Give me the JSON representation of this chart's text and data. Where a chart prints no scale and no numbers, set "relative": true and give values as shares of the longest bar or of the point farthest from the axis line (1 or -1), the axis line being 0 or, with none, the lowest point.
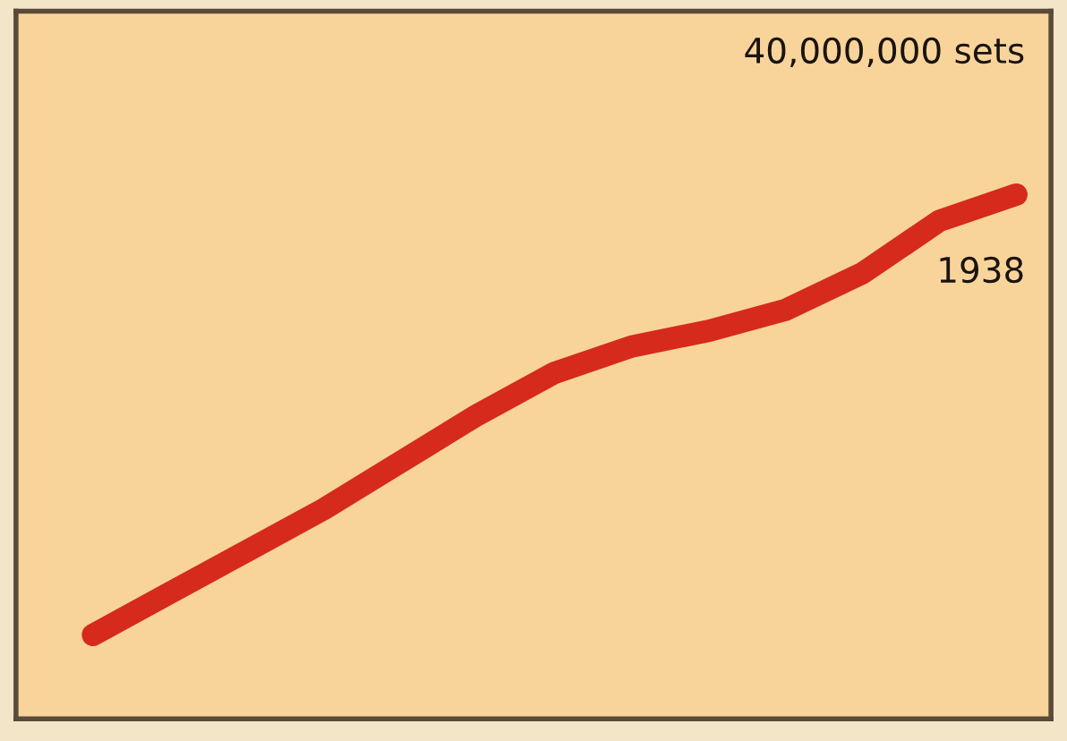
{
  "chart_data": {
    "type": "line",
    "relative": true,
    "categories": [
      null,
      null,
      null,
      null,
      null,
      null,
      null,
      null,
      null,
      null,
      null,
      null,
      null
    ],
    "series": [
      {
        "color": "#d62a1c",
        "values": [
          0.16,
          0.24,
          0.32,
          0.4,
          0.49,
          0.58,
          0.66,
          0.71,
          0.74,
          0.78,
          0.85,
          0.95,
          1
        ]
      }
    ],
    "annotations": [
      "40,000,000 sets",
      "1938"
    ],
    "grid": false,
    "legend": false,
    "line_style": "solid"
  }
}
